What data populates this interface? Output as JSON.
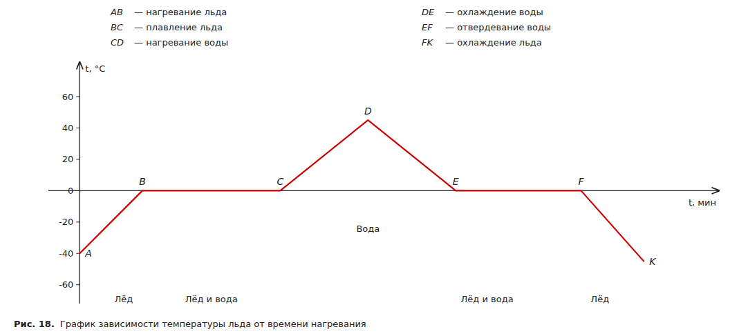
{
  "chart_data": {
    "type": "line",
    "title": "Рис. 18.",
    "subtitle": "График зависимости температуры льда от времени нагревания",
    "ylabel": "t, °C",
    "xlabel": "t, мин",
    "x": [
      0,
      1.0,
      3.2,
      4.6,
      6.0,
      8.0,
      9.0
    ],
    "series": [
      {
        "values": [
          -40,
          0,
          0,
          45,
          0,
          0,
          -45
        ],
        "color": "#cc0000"
      }
    ],
    "xlim": [
      -0.5,
      10.2
    ],
    "ylim": [
      -72,
      82
    ],
    "yticks": [
      -60,
      -40,
      -20,
      0,
      20,
      40,
      60
    ],
    "tick_labels": "y",
    "grid": false,
    "legend_items": [
      {
        "label": "AB",
        "text": "— нагревание льда"
      },
      {
        "label": "BC",
        "text": "— плавление льда"
      },
      {
        "label": "CD",
        "text": "— нагревание воды"
      },
      {
        "label": "DE",
        "text": "— охлаждение воды"
      },
      {
        "label": "EF",
        "text": "— отвердевание воды"
      },
      {
        "label": "FK",
        "text": "— охлаждение льда"
      }
    ],
    "annotations": [
      {
        "text": "A",
        "x": 0,
        "y": -40
      },
      {
        "text": "B",
        "x": 1.0,
        "y": 0
      },
      {
        "text": "C",
        "x": 3.2,
        "y": 0
      },
      {
        "text": "D",
        "x": 4.6,
        "y": 45
      },
      {
        "text": "E",
        "x": 6.0,
        "y": 0
      },
      {
        "text": "F",
        "x": 8.0,
        "y": 0
      },
      {
        "text": "K",
        "x": 9.0,
        "y": -45
      }
    ],
    "region_labels": [
      {
        "text": "Лёд",
        "x": 0.7,
        "y": -67
      },
      {
        "text": "Лёд и вода",
        "x": 2.1,
        "y": -67
      },
      {
        "text": "Вода",
        "x": 4.6,
        "y": -22
      },
      {
        "text": "Лёд и вода",
        "x": 6.5,
        "y": -67
      },
      {
        "text": "Лёд",
        "x": 8.3,
        "y": -67
      }
    ]
  }
}
